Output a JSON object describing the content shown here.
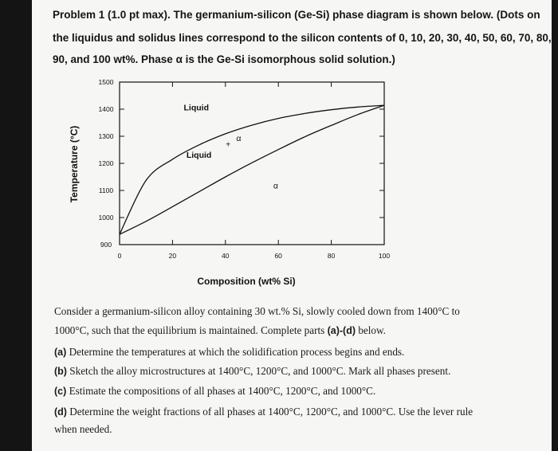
{
  "problem": {
    "line1": "Problem 1  (1.0 pt max).  The germanium-silicon (Ge-Si) phase diagram is shown below. (Dots on",
    "line2": "the liquidus and solidus lines correspond to the silicon contents of 0, 10, 20, 30, 40, 50, 60, 70, 80,",
    "line3": "90, and 100 wt%. Phase α is the Ge-Si isomorphous solid solution.)"
  },
  "chart_data": {
    "type": "line",
    "xlabel": "Composition (wt% Si)",
    "ylabel": "Temperature (°C)",
    "xlim": [
      0,
      100
    ],
    "ylim": [
      900,
      1500
    ],
    "x_ticks": [
      "0",
      "20",
      "40",
      "60",
      "80",
      "100"
    ],
    "y_ticks": [
      "900",
      "1000",
      "1100",
      "1200",
      "1300",
      "1400",
      "1500"
    ],
    "series": [
      {
        "x": [
          0,
          10,
          20,
          30,
          40,
          50,
          60,
          70,
          80,
          90,
          100
        ],
        "y": [
          938,
          1137,
          1215,
          1268,
          1309,
          1341,
          1366,
          1384,
          1398,
          1408,
          1414
        ]
      },
      {
        "x": [
          0,
          10,
          20,
          30,
          40,
          50,
          60,
          70,
          80,
          90,
          100
        ],
        "y": [
          938,
          986,
          1040,
          1095,
          1150,
          1202,
          1251,
          1298,
          1340,
          1380,
          1414
        ]
      }
    ],
    "annotations": [
      {
        "text": "Liquid",
        "x": 29,
        "y": 1395
      },
      {
        "text": "α",
        "x": 45,
        "y": 1283
      },
      {
        "text": "+",
        "x": 41,
        "y": 1260
      },
      {
        "text": "Liquid",
        "x": 30,
        "y": 1220
      },
      {
        "text": "α",
        "x": 59,
        "y": 1108
      }
    ]
  },
  "questions": {
    "intro1": "Consider a germanium-silicon alloy containing 30 wt.% Si, slowly cooled down from 1400°C to",
    "intro2": "1000°C, such that the equilibrium is maintained. Complete parts ",
    "intro2_bold": "(a)-(d)",
    "intro2_end": " below.",
    "a_label": "(a)",
    "a": "Determine the temperatures at which the solidification process begins and ends.",
    "b_label": "(b)",
    "b": "Sketch the alloy microstructures at 1400°C, 1200°C, and 1000°C. Mark all phases present.",
    "c_label": "(c)",
    "c": "Estimate the compositions of all phases at 1400°C, 1200°C, and 1000°C.",
    "d_label": "(d)",
    "d": "Determine the weight fractions of all phases at 1400°C, 1200°C, and 1000°C. Use the lever rule",
    "d2": "when needed."
  }
}
